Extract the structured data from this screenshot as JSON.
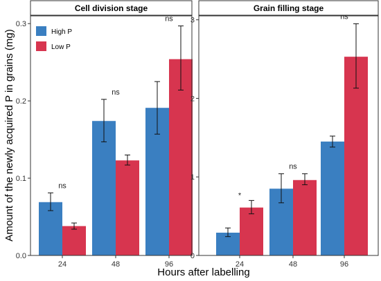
{
  "chart_data": {
    "type": "bar",
    "xlabel": "Hours after labelling",
    "ylabel": "Amount of the newly acquired P in grains (mg)",
    "legend": {
      "placement": "top-left",
      "entries": [
        {
          "name": "High P",
          "color": "#3a7fc1"
        },
        {
          "name": "Low P",
          "color": "#d7354f"
        }
      ]
    },
    "grid": false,
    "panels": [
      {
        "title": "Cell division stage",
        "categories": [
          "24",
          "48",
          "96"
        ],
        "ylim": [
          0,
          0.31
        ],
        "yticks": [
          "0.0",
          "0.1",
          "0.2",
          "0.3"
        ],
        "ytick_values": [
          0,
          0.1,
          0.2,
          0.3
        ],
        "series": [
          {
            "name": "High P",
            "values": [
              0.069,
              0.174,
              0.191
            ],
            "err_low": [
              0.058,
              0.147,
              0.157
            ],
            "err_high": [
              0.081,
              0.202,
              0.225
            ]
          },
          {
            "name": "Low P",
            "values": [
              0.038,
              0.123,
              0.254
            ],
            "err_low": [
              0.034,
              0.117,
              0.214
            ],
            "err_high": [
              0.042,
              0.13,
              0.297
            ]
          }
        ],
        "significance": [
          "ns",
          "ns",
          "ns"
        ]
      },
      {
        "title": "Grain filling stage",
        "categories": [
          "24",
          "48",
          "96"
        ],
        "ylim": [
          0,
          3.05
        ],
        "yticks": [
          "0",
          "1",
          "2",
          "3"
        ],
        "ytick_values": [
          0,
          1,
          2,
          3
        ],
        "series": [
          {
            "name": "High P",
            "values": [
              0.29,
              0.85,
              1.45
            ],
            "err_low": [
              0.24,
              0.67,
              1.38
            ],
            "err_high": [
              0.35,
              1.04,
              1.52
            ]
          },
          {
            "name": "Low P",
            "values": [
              0.61,
              0.96,
              2.53
            ],
            "err_low": [
              0.53,
              0.9,
              2.13
            ],
            "err_high": [
              0.7,
              1.04,
              2.95
            ]
          }
        ],
        "significance": [
          "*",
          "ns",
          "ns"
        ]
      }
    ]
  }
}
